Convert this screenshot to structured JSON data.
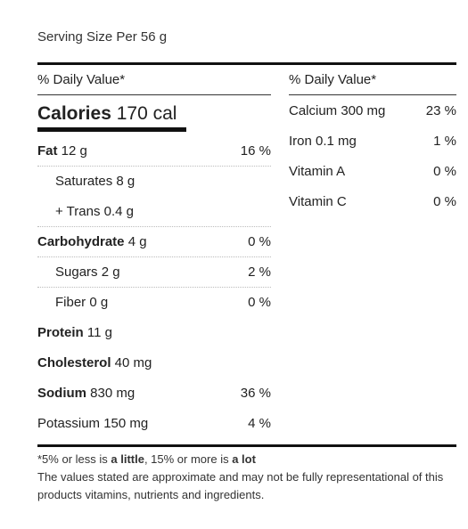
{
  "serving": "Serving Size Per 56 g",
  "left": {
    "dv_header": "% Daily Value*",
    "calories_label": "Calories",
    "calories_value": "170 cal",
    "rows": [
      {
        "bold": "Fat",
        "rest": " 12 g",
        "pct": "16 %"
      },
      {
        "bold": "",
        "rest": "Saturates 8 g",
        "pct": ""
      },
      {
        "bold": "",
        "rest": "+ Trans 0.4 g",
        "pct": ""
      },
      {
        "bold": "Carbohydrate",
        "rest": " 4 g",
        "pct": "0 %"
      },
      {
        "bold": "",
        "rest": "Sugars 2 g",
        "pct": "2 %"
      },
      {
        "bold": "",
        "rest": "Fiber 0 g",
        "pct": "0 %"
      },
      {
        "bold": "Protein",
        "rest": " 11 g",
        "pct": ""
      },
      {
        "bold": "Cholesterol",
        "rest": " 40 mg",
        "pct": ""
      },
      {
        "bold": "Sodium",
        "rest": " 830 mg",
        "pct": "36 %"
      },
      {
        "bold": "",
        "rest": "Potassium 150 mg",
        "pct": "4 %"
      }
    ]
  },
  "right": {
    "dv_header": "% Daily Value*",
    "rows": [
      {
        "label": "Calcium 300 mg",
        "pct": "23 %"
      },
      {
        "label": "Iron 0.1 mg",
        "pct": "1 %"
      },
      {
        "label": "Vitamin A",
        "pct": "0 %"
      },
      {
        "label": "Vitamin C",
        "pct": "0 %"
      }
    ]
  },
  "footnote": {
    "p1": "*5% or less is ",
    "b1": "a little",
    "p2": ", 15% or more is ",
    "b2": "a lot"
  },
  "disclaimer": "The values stated are approximate and may not be fully representational of this products vitamins, nutrients and ingredients."
}
